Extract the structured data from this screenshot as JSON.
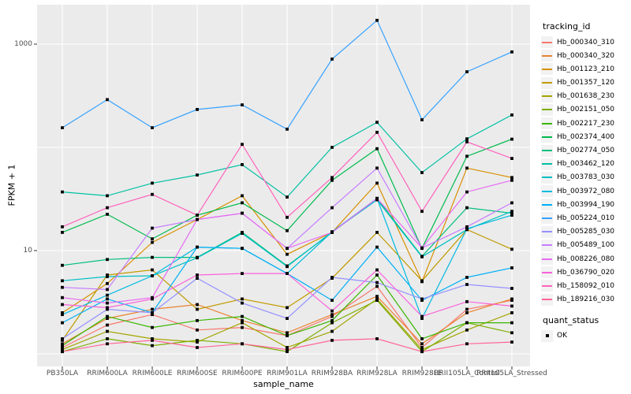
{
  "y_axis": {
    "title": "FPKM + 1",
    "tick_labels": [
      "1000",
      "10"
    ]
  },
  "x_axis": {
    "title": "sample_name"
  },
  "legend": {
    "tracking_title": "tracking_id",
    "quant_title": "quant_status",
    "quant_items": [
      {
        "label": "OK"
      }
    ]
  },
  "colors": {
    "panel_bg": "#EBEBEB",
    "gridline": "#FFFFFF",
    "tick_text": "#4D4D4D",
    "axis_tick": "#333333",
    "point": "#000000",
    "legend_key_bg": "#F2F2F2"
  },
  "chart_data": {
    "type": "line",
    "y_scale": "log10",
    "ylim": [
      1,
      2400
    ],
    "y_gridlines": [
      1,
      10,
      100,
      1000
    ],
    "y_labeled_breaks": [
      10,
      1000
    ],
    "grid": "on",
    "legend_position": "right",
    "point_shape": "filled-black-square",
    "xlabel": "sample_name",
    "ylabel": "FPKM + 1",
    "x_categories": [
      "PB350LA",
      "RRIM600LA",
      "RRIM600LE",
      "RRIM600SE",
      "RRIM600PE",
      "RRIM901LA",
      "RRIM928BA",
      "RRIM928LA",
      "RRIM928LE",
      "RRII105LA_Control",
      "RRII105LA_Stressed"
    ],
    "quant_status_values": [
      "OK"
    ],
    "series": [
      {
        "name": "Hb_000340_310",
        "color": "#F8766D",
        "values": [
          1.15,
          1.9,
          2.4,
          1.7,
          1.8,
          1.5,
          2.3,
          4.5,
          1.15,
          2.7,
          3.3
        ]
      },
      {
        "name": "Hb_000340_320",
        "color": "#EA8331",
        "values": [
          1.25,
          2.2,
          2.7,
          3.0,
          2.1,
          1.6,
          2.4,
          3.6,
          1.25,
          2.5,
          3.4
        ]
      },
      {
        "name": "Hb_001123_210",
        "color": "#D89000",
        "values": [
          2.5,
          4.8,
          12,
          20,
          34,
          9.2,
          15,
          45,
          5.0,
          63,
          51
        ]
      },
      {
        "name": "Hb_001357_120",
        "color": "#C09B00",
        "values": [
          1.35,
          5.8,
          6.5,
          2.7,
          3.4,
          2.8,
          5.4,
          15,
          5.1,
          16,
          10.3
        ]
      },
      {
        "name": "Hb_001638_230",
        "color": "#A3A500",
        "values": [
          1.1,
          1.65,
          1.4,
          1.3,
          2.0,
          1.15,
          1.65,
          3.4,
          1.1,
          1.7,
          2.5
        ]
      },
      {
        "name": "Hb_002151_050",
        "color": "#7CAE00",
        "values": [
          1.05,
          1.4,
          1.2,
          1.35,
          1.25,
          1.05,
          2.0,
          3.3,
          1.05,
          2.0,
          1.6
        ]
      },
      {
        "name": "Hb_002217_230",
        "color": "#39B600",
        "values": [
          1.2,
          2.3,
          1.8,
          2.1,
          2.3,
          1.5,
          2.1,
          5.8,
          1.4,
          2.0,
          2.0
        ]
      },
      {
        "name": "Hb_002374_400",
        "color": "#00BB4E",
        "values": [
          15,
          22.5,
          13,
          22,
          29,
          15.6,
          48,
          97,
          10.5,
          82,
          120
        ]
      },
      {
        "name": "Hb_002774_050",
        "color": "#00BF7D",
        "values": [
          7.2,
          8.2,
          8.6,
          8.6,
          15,
          7.1,
          15,
          32,
          8.8,
          26,
          23
        ]
      },
      {
        "name": "Hb_003462_120",
        "color": "#00C1A3",
        "values": [
          37,
          34,
          45,
          54,
          68,
          33,
          100,
          175,
          57,
          121,
          206
        ]
      },
      {
        "name": "Hb_003783_030",
        "color": "#00BFC4",
        "values": [
          5.1,
          5.6,
          5.7,
          8.5,
          14.7,
          7.0,
          15.2,
          31,
          8.7,
          16,
          24
        ]
      },
      {
        "name": "Hb_003972_080",
        "color": "#00BAE0",
        "values": [
          2.4,
          3.7,
          5.7,
          10.8,
          10.5,
          6.0,
          15.2,
          32,
          2.2,
          16.3,
          22
        ]
      },
      {
        "name": "Hb_003994_190",
        "color": "#00B0F6",
        "values": [
          2.0,
          3.4,
          2.5,
          10.8,
          10.5,
          6.0,
          3.3,
          10.8,
          3.3,
          5.5,
          6.8
        ]
      },
      {
        "name": "Hb_005224_010",
        "color": "#35A2FF",
        "values": [
          155,
          290,
          155,
          233,
          258,
          150,
          716,
          1700,
          185,
          540,
          840
        ]
      },
      {
        "name": "Hb_005285_030",
        "color": "#9590FF",
        "values": [
          1.4,
          2.7,
          2.5,
          5.4,
          3.1,
          2.2,
          5.5,
          4.9,
          3.4,
          4.7,
          4.3
        ]
      },
      {
        "name": "Hb_005489_100",
        "color": "#C77CFF",
        "values": [
          4.4,
          4.2,
          16.5,
          20,
          23,
          10.5,
          26,
          63,
          10.6,
          17,
          29
        ]
      },
      {
        "name": "Hb_008226_080",
        "color": "#E76BF3",
        "values": [
          3.5,
          3.1,
          3.5,
          20,
          23,
          10.5,
          15,
          32,
          10.6,
          37,
          48
        ]
      },
      {
        "name": "Hb_036790_020",
        "color": "#FA62DB",
        "values": [
          3.0,
          2.8,
          3.4,
          5.8,
          6.0,
          6.0,
          2.6,
          6.5,
          2.3,
          3.2,
          2.9
        ]
      },
      {
        "name": "Hb_158092_010",
        "color": "#FF62BC",
        "values": [
          17,
          26,
          35,
          22,
          107,
          21,
          51,
          140,
          24,
          113,
          78
        ]
      },
      {
        "name": "Hb_189216_030",
        "color": "#FF6598",
        "values": [
          1.05,
          1.25,
          1.35,
          1.15,
          1.25,
          1.1,
          1.35,
          1.4,
          1.05,
          1.25,
          1.3
        ]
      }
    ]
  }
}
